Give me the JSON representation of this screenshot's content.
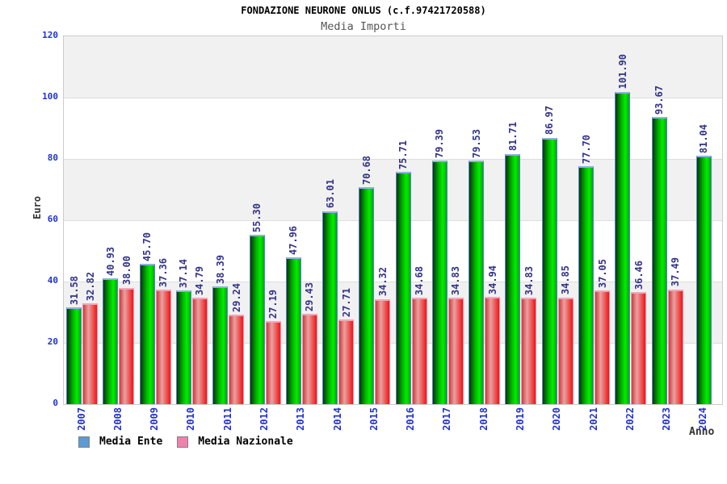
{
  "title": "FONDAZIONE NEURONE ONLUS (c.f.97421720588)",
  "subtitle": "Media Importi",
  "axes": {
    "y_title": "Euro",
    "x_title": "Anno",
    "y_ticks": [
      120,
      100,
      80,
      60,
      40,
      20,
      0
    ],
    "y_max": 120
  },
  "legend": {
    "items": [
      {
        "label": "Media Ente",
        "swatch_color": "#5b9bd5"
      },
      {
        "label": "Media Nazionale",
        "swatch_color": "#ee82ae"
      }
    ]
  },
  "colors": {
    "axis_label_blue": "#2233cc",
    "value_label_navy": "#333388",
    "band_gray": "#f1f1f1",
    "plot_border": "#cccccc",
    "gridline": "#dddddd"
  },
  "chart_data": {
    "type": "bar",
    "title": "Media Importi",
    "xlabel": "Anno",
    "ylabel": "Euro",
    "ylim": [
      0,
      120
    ],
    "grid": true,
    "legend_position": "bottom-left",
    "value_labels_rotated": true,
    "categories": [
      "2007",
      "2008",
      "2009",
      "2010",
      "2011",
      "2012",
      "2013",
      "2014",
      "2015",
      "2016",
      "2017",
      "2018",
      "2019",
      "2020",
      "2021",
      "2022",
      "2023",
      "2024"
    ],
    "series": [
      {
        "name": "Media Ente",
        "values": [
          31.58,
          40.93,
          45.7,
          37.14,
          38.39,
          55.3,
          47.96,
          63.01,
          70.68,
          75.71,
          79.39,
          79.53,
          81.71,
          86.97,
          77.7,
          101.9,
          93.67,
          81.04
        ],
        "bar_gradient": [
          "#073807",
          "#00b900",
          "#00ee00",
          "#00a800"
        ],
        "border_color": "#5d7fd6",
        "cap_color": "#8fb2e3"
      },
      {
        "name": "Media Nazionale",
        "values": [
          32.82,
          38.0,
          37.36,
          34.79,
          29.24,
          27.19,
          29.43,
          27.71,
          34.32,
          34.68,
          34.83,
          34.94,
          34.83,
          34.85,
          37.05,
          36.46,
          37.49,
          null
        ],
        "bar_gradient": [
          "#cd3a3a",
          "#e9a1a1",
          "#f01414"
        ],
        "border_color": "#ef94b2",
        "cap_color": "#f3a6ba"
      }
    ]
  }
}
